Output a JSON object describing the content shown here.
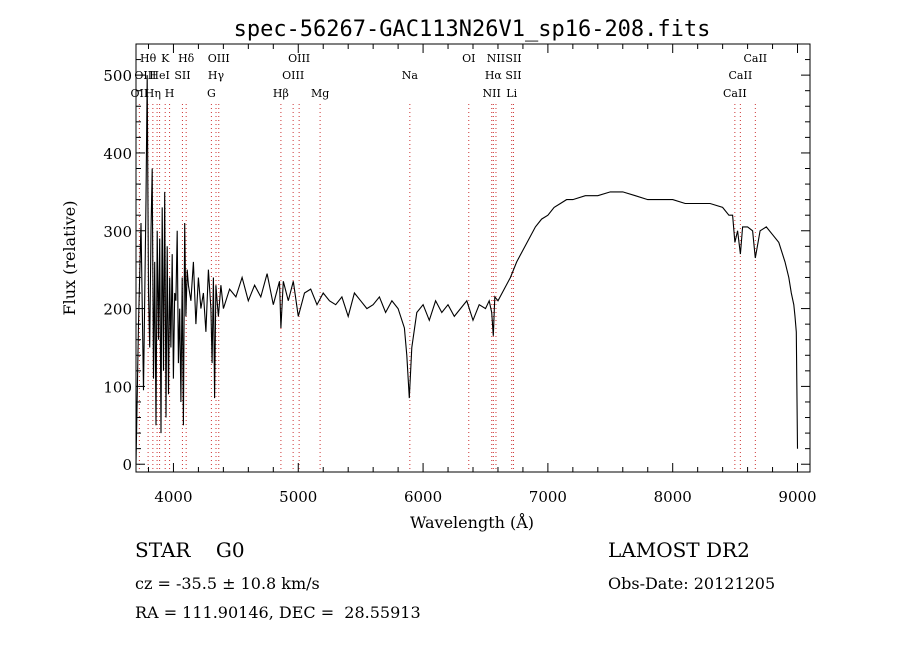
{
  "chart_data": {
    "type": "line",
    "title": "spec-56267-GAC113N26V1_sp16-208.fits",
    "xlabel": "Wavelength (Å)",
    "ylabel": "Flux (relative)",
    "xlim": [
      3700,
      9100
    ],
    "ylim": [
      -10,
      540
    ],
    "x_ticks": [
      4000,
      5000,
      6000,
      7000,
      8000,
      9000
    ],
    "y_ticks": [
      0,
      100,
      200,
      300,
      400,
      500
    ],
    "grid": false,
    "series": [
      {
        "x": [
          3700,
          3720,
          3740,
          3760,
          3780,
          3790,
          3800,
          3810,
          3820,
          3830,
          3840,
          3850,
          3860,
          3870,
          3880,
          3890,
          3900,
          3910,
          3920,
          3930,
          3940,
          3950,
          3960,
          3970,
          3980,
          3990,
          4000,
          4010,
          4020,
          4030,
          4040,
          4050,
          4060,
          4070,
          4080,
          4090,
          4100,
          4110,
          4120,
          4140,
          4160,
          4180,
          4200,
          4220,
          4240,
          4260,
          4280,
          4300,
          4310,
          4320,
          4330,
          4340,
          4350,
          4360,
          4380,
          4400,
          4450,
          4500,
          4550,
          4600,
          4650,
          4700,
          4750,
          4800,
          4850,
          4861,
          4880,
          4920,
          4960,
          5000,
          5050,
          5100,
          5150,
          5200,
          5250,
          5300,
          5350,
          5400,
          5450,
          5500,
          5550,
          5600,
          5650,
          5700,
          5750,
          5800,
          5850,
          5870,
          5890,
          5910,
          5950,
          6000,
          6050,
          6100,
          6150,
          6200,
          6250,
          6300,
          6350,
          6400,
          6450,
          6500,
          6530,
          6550,
          6563,
          6575,
          6600,
          6650,
          6700,
          6750,
          6800,
          6850,
          6900,
          6950,
          7000,
          7050,
          7100,
          7150,
          7200,
          7300,
          7400,
          7500,
          7600,
          7700,
          7800,
          7900,
          8000,
          8100,
          8200,
          8300,
          8400,
          8450,
          8480,
          8498,
          8520,
          8542,
          8560,
          8600,
          8640,
          8662,
          8700,
          8750,
          8800,
          8850,
          8900,
          8930,
          8950,
          8970,
          8980,
          8990,
          9000
        ],
        "y": [
          0,
          180,
          310,
          95,
          340,
          500,
          220,
          150,
          300,
          380,
          110,
          260,
          50,
          300,
          160,
          290,
          40,
          330,
          120,
          350,
          60,
          280,
          90,
          240,
          150,
          270,
          110,
          220,
          210,
          300,
          130,
          200,
          80,
          240,
          50,
          310,
          190,
          250,
          230,
          210,
          260,
          180,
          240,
          200,
          220,
          170,
          250,
          200,
          130,
          240,
          85,
          230,
          210,
          190,
          230,
          200,
          225,
          215,
          240,
          210,
          230,
          215,
          245,
          205,
          235,
          175,
          235,
          210,
          235,
          190,
          220,
          225,
          205,
          220,
          210,
          205,
          215,
          190,
          220,
          210,
          200,
          205,
          215,
          195,
          210,
          200,
          175,
          140,
          85,
          150,
          195,
          205,
          185,
          210,
          195,
          205,
          190,
          200,
          210,
          185,
          205,
          200,
          210,
          195,
          165,
          215,
          210,
          225,
          240,
          260,
          275,
          290,
          305,
          315,
          320,
          330,
          335,
          340,
          340,
          345,
          345,
          350,
          350,
          345,
          340,
          340,
          340,
          335,
          335,
          335,
          330,
          320,
          320,
          285,
          300,
          270,
          305,
          305,
          300,
          265,
          300,
          305,
          295,
          285,
          260,
          240,
          220,
          205,
          190,
          170,
          20
        ]
      }
    ],
    "lines": [
      {
        "x": 3727,
        "labels": [
          "OII"
        ]
      },
      {
        "x": 3797,
        "labels": [
          "Hθ"
        ]
      },
      {
        "x": 3835,
        "labels": [
          "Hη"
        ]
      },
      {
        "x": 3869,
        "labels": [
          "OIII"
        ]
      },
      {
        "x": 3889,
        "labels": [
          "HeI"
        ]
      },
      {
        "x": 3934,
        "labels": [
          "K"
        ]
      },
      {
        "x": 3969,
        "labels": [
          "H"
        ]
      },
      {
        "x": 4072,
        "labels": [
          "SII"
        ]
      },
      {
        "x": 4102,
        "labels": [
          "Hδ"
        ]
      },
      {
        "x": 4304,
        "labels": [
          "G"
        ]
      },
      {
        "x": 4341,
        "labels": [
          "Hγ"
        ]
      },
      {
        "x": 4363,
        "labels": [
          "OIII"
        ]
      },
      {
        "x": 4861,
        "labels": [
          "Hβ"
        ]
      },
      {
        "x": 4959,
        "labels": [
          "OIII"
        ]
      },
      {
        "x": 5007,
        "labels": [
          "OIII"
        ]
      },
      {
        "x": 5175,
        "labels": [
          "Mg"
        ]
      },
      {
        "x": 5894,
        "labels": [
          "Na"
        ]
      },
      {
        "x": 6366,
        "labels": [
          "OI"
        ]
      },
      {
        "x": 6550,
        "labels": [
          "NII"
        ]
      },
      {
        "x": 6563,
        "labels": [
          "Hα"
        ]
      },
      {
        "x": 6584,
        "labels": [
          "NII"
        ]
      },
      {
        "x": 6710,
        "labels": [
          "Li"
        ]
      },
      {
        "x": 6724,
        "labels": [
          "SII"
        ]
      },
      {
        "x": 8498,
        "labels": [
          "CaII"
        ]
      },
      {
        "x": 8542,
        "labels": [
          "CaII"
        ]
      },
      {
        "x": 8662,
        "labels": [
          "CaII"
        ]
      }
    ],
    "line_label_marks": [
      {
        "text": "Hθ",
        "row": 0,
        "x": 3797
      },
      {
        "text": "K",
        "row": 0,
        "x": 3934
      },
      {
        "text": "Hδ",
        "row": 0,
        "x": 4102
      },
      {
        "text": "OIII",
        "row": 0,
        "x": 4363
      },
      {
        "text": "OIII",
        "row": 0,
        "x": 5007
      },
      {
        "text": "OI",
        "row": 0,
        "x": 6366
      },
      {
        "text": "NII",
        "row": 0,
        "x": 6584
      },
      {
        "text": "SII",
        "row": 0,
        "x": 6724
      },
      {
        "text": "CaII",
        "row": 0,
        "x": 8662
      },
      {
        "text": "OIII",
        "row": 1,
        "x": 3775
      },
      {
        "text": "HeI",
        "row": 1,
        "x": 3889
      },
      {
        "text": "SII",
        "row": 1,
        "x": 4072
      },
      {
        "text": "Hγ",
        "row": 1,
        "x": 4341
      },
      {
        "text": "OIII",
        "row": 1,
        "x": 4959
      },
      {
        "text": "Hα",
        "row": 1,
        "x": 6563
      },
      {
        "text": "SII",
        "row": 1,
        "x": 6724
      },
      {
        "text": "CaII",
        "row": 1,
        "x": 8542
      },
      {
        "text": "OII",
        "row": 2,
        "x": 3727
      },
      {
        "text": "Hη",
        "row": 2,
        "x": 3835
      },
      {
        "text": "H",
        "row": 2,
        "x": 3969
      },
      {
        "text": "G",
        "row": 2,
        "x": 4304
      },
      {
        "text": "Hβ",
        "row": 2,
        "x": 4861
      },
      {
        "text": "Mg",
        "row": 2,
        "x": 5175
      },
      {
        "text": "Na",
        "row": 1,
        "x": 5894
      },
      {
        "text": "NII",
        "row": 2,
        "x": 6550
      },
      {
        "text": "Li",
        "row": 2,
        "x": 6710
      },
      {
        "text": "CaII",
        "row": 2,
        "x": 8498
      }
    ]
  },
  "info": {
    "class_line": "STAR    G0",
    "survey": "LAMOST DR2",
    "cz": "cz = -35.5 ± 10.8 km/s",
    "obs_date": "Obs-Date: 20121205",
    "radec": "RA = 111.90146, DEC =  28.55913"
  },
  "colors": {
    "spectrum": "#000000",
    "line_markers": "#cc3333",
    "axes": "#000000"
  }
}
